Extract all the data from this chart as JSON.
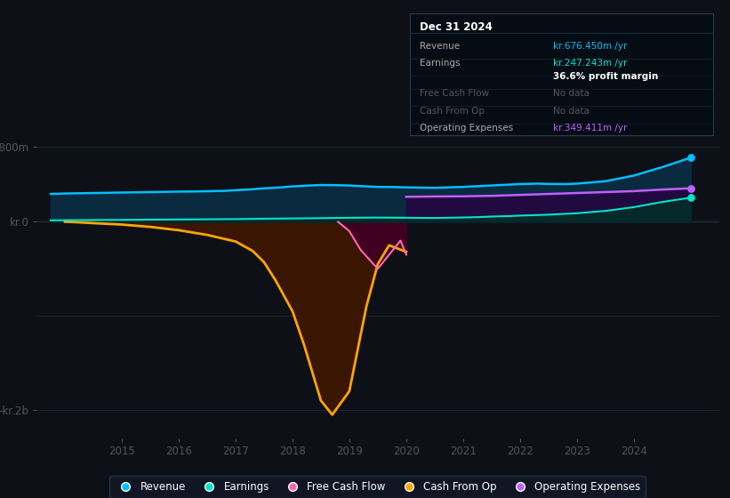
{
  "bg_color": "#0d1117",
  "xlim": [
    2013.5,
    2025.5
  ],
  "ylim": [
    -2300,
    980
  ],
  "revenue_x": [
    2013.75,
    2014.0,
    2014.5,
    2015.0,
    2015.5,
    2016.0,
    2016.3,
    2016.5,
    2016.8,
    2017.0,
    2017.3,
    2017.5,
    2017.8,
    2018.0,
    2018.3,
    2018.5,
    2018.8,
    2019.0,
    2019.3,
    2019.5,
    2019.8,
    2020.0,
    2020.5,
    2021.0,
    2021.5,
    2022.0,
    2022.3,
    2022.5,
    2022.8,
    2023.0,
    2023.5,
    2024.0,
    2024.5,
    2025.0
  ],
  "revenue_y": [
    295,
    300,
    305,
    310,
    315,
    320,
    322,
    324,
    328,
    335,
    345,
    355,
    365,
    375,
    385,
    390,
    388,
    385,
    375,
    370,
    368,
    365,
    360,
    370,
    385,
    400,
    405,
    402,
    400,
    405,
    430,
    490,
    580,
    680
  ],
  "revenue_color": "#00bfff",
  "revenue_fill": "#0a2a40",
  "earnings_x": [
    2013.75,
    2014.0,
    2014.5,
    2015.0,
    2015.5,
    2016.0,
    2016.5,
    2017.0,
    2017.5,
    2018.0,
    2018.5,
    2019.0,
    2019.5,
    2020.0,
    2020.5,
    2021.0,
    2021.3,
    2021.5,
    2021.8,
    2022.0,
    2022.5,
    2023.0,
    2023.5,
    2024.0,
    2024.5,
    2025.0
  ],
  "earnings_y": [
    15,
    16,
    18,
    20,
    22,
    24,
    26,
    28,
    32,
    35,
    38,
    42,
    44,
    42,
    40,
    45,
    50,
    55,
    60,
    65,
    75,
    90,
    115,
    155,
    210,
    255
  ],
  "earnings_color": "#00e5cc",
  "earnings_fill": "#052828",
  "op_exp_x": [
    2020.0,
    2020.5,
    2021.0,
    2021.5,
    2022.0,
    2022.5,
    2023.0,
    2023.5,
    2024.0,
    2024.5,
    2025.0
  ],
  "op_exp_y": [
    265,
    268,
    270,
    275,
    285,
    295,
    305,
    315,
    325,
    342,
    355
  ],
  "op_exp_color": "#bf5fff",
  "op_exp_fill": "#200a40",
  "cash_op_x": [
    2014.0,
    2014.2,
    2014.5,
    2015.0,
    2015.5,
    2016.0,
    2016.5,
    2017.0,
    2017.3,
    2017.5,
    2017.7,
    2018.0,
    2018.2,
    2018.5,
    2018.7,
    2019.0,
    2019.3,
    2019.5,
    2019.7,
    2020.0
  ],
  "cash_op_y": [
    0,
    -5,
    -15,
    -30,
    -55,
    -90,
    -140,
    -210,
    -310,
    -430,
    -620,
    -950,
    -1300,
    -1900,
    -2050,
    -1800,
    -900,
    -450,
    -250,
    -320
  ],
  "cash_op_color": "#ffa500",
  "cash_op_fill": "#3a1500",
  "fcf_x": [
    2018.8,
    2019.0,
    2019.2,
    2019.5,
    2019.7,
    2019.9,
    2020.0
  ],
  "fcf_y": [
    0,
    -100,
    -300,
    -500,
    -350,
    -200,
    -350
  ],
  "fcf_color": "#ff69b4",
  "fcf_fill": "#400020",
  "legend_items": [
    {
      "label": "Revenue",
      "color": "#00bfff"
    },
    {
      "label": "Earnings",
      "color": "#00e5cc"
    },
    {
      "label": "Free Cash Flow",
      "color": "#ff69b4"
    },
    {
      "label": "Cash From Op",
      "color": "#ffa500"
    },
    {
      "label": "Operating Expenses",
      "color": "#bf5fff"
    }
  ],
  "info_date": "Dec 31 2024",
  "info_rows": [
    {
      "label": "Revenue",
      "value": "kr.676.450m /yr",
      "value_color": "#00bfff",
      "label_color": "#aaaaaa"
    },
    {
      "label": "Earnings",
      "value": "kr.247.243m /yr",
      "value_color": "#00e5cc",
      "label_color": "#aaaaaa"
    },
    {
      "label": "",
      "value": "36.6% profit margin",
      "value_color": "#ffffff",
      "label_color": "#aaaaaa",
      "bold": true
    },
    {
      "label": "Free Cash Flow",
      "value": "No data",
      "value_color": "#555566",
      "label_color": "#555566"
    },
    {
      "label": "Cash From Op",
      "value": "No data",
      "value_color": "#555566",
      "label_color": "#555566"
    },
    {
      "label": "Operating Expenses",
      "value": "kr.349.411m /yr",
      "value_color": "#bf5fff",
      "label_color": "#aaaaaa"
    }
  ]
}
